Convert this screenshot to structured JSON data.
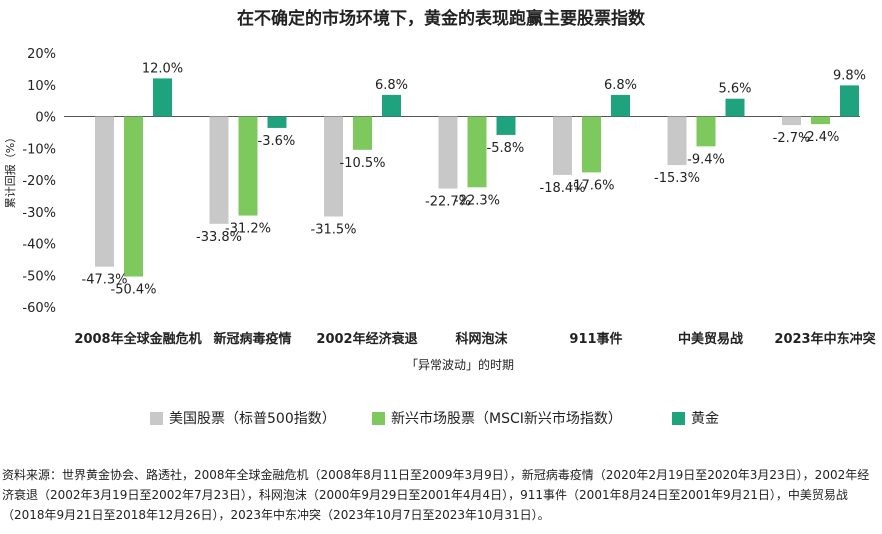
{
  "title": "在不确定的市场环境下，黄金的表现跑赢主要股票指数",
  "chart_data": {
    "type": "bar",
    "ylabel": "累计回报（%）",
    "xlabel": "「异常波动」的时期",
    "ylim": [
      -60,
      20
    ],
    "yticks": [
      20,
      10,
      0,
      -10,
      -20,
      -30,
      -40,
      -50,
      -60
    ],
    "ytick_labels": [
      "20%",
      "10%",
      "0%",
      "-10%",
      "-20%",
      "-30%",
      "-40%",
      "-50%",
      "-60%"
    ],
    "categories": [
      "2008年全球金融危机",
      "新冠病毒疫情",
      "2002年经济衰退",
      "科网泡沫",
      "911事件",
      "中美贸易战",
      "2023年中东冲突"
    ],
    "series": [
      {
        "name": "美国股票（标普500指数）",
        "color": "#c8c8c8",
        "values": [
          -47.3,
          -33.8,
          -31.5,
          -22.7,
          -18.4,
          -15.3,
          -2.7
        ],
        "labels": [
          "-47.3%",
          "-33.8%",
          "-31.5%",
          "-22.7%",
          "-18.4%",
          "-15.3%",
          "-2.7%"
        ]
      },
      {
        "name": "新兴市场股票（MSCI新兴市场指数）",
        "color": "#7dc95e",
        "values": [
          -50.4,
          -31.2,
          -10.5,
          -22.3,
          -17.6,
          -9.4,
          -2.4
        ],
        "labels": [
          "-50.4%",
          "-31.2%",
          "-10.5%",
          "-22.3%",
          "-17.6%",
          "-9.4%",
          "-2.4%"
        ]
      },
      {
        "name": "黄金",
        "color": "#1fa37e",
        "values": [
          12.0,
          -3.6,
          6.8,
          -5.8,
          6.8,
          5.6,
          9.8
        ],
        "labels": [
          "12.0%",
          "-3.6%",
          "6.8%",
          "-5.8%",
          "6.8%",
          "5.6%",
          "9.8%"
        ]
      }
    ],
    "grid": false,
    "legend_position": "bottom"
  },
  "source": "资料来源：世界黄金协会、路透社，2008年全球金融危机（2008年8月11日至2009年3月9日），新冠病毒疫情（2020年2月19日至2020年3月23日），2002年经济衰退（2002年3月19日至2002年7月23日），科网泡沫（2000年9月29日至2001年4月4日），911事件（2001年8月24日至2001年9月21日），中美贸易战（2018年9月21日至2018年12月26日），2023年中东冲突（2023年10月7日至2023年10月31日）。"
}
